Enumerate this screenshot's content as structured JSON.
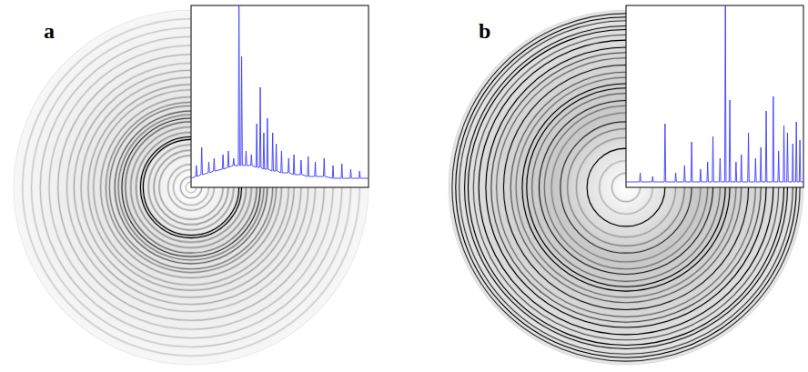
{
  "chart_data": [
    {
      "type": "line",
      "title": "a",
      "x": [
        0,
        2.6,
        3,
        3.4,
        5.6,
        6,
        6.4,
        9.6,
        10,
        10.4,
        12.6,
        13,
        13.4,
        17.6,
        18,
        18.4,
        20.6,
        21,
        21.4,
        23.6,
        24,
        24.4,
        26.6,
        27,
        27.4,
        28.1,
        28.5,
        28.9,
        30.6,
        31,
        31.4,
        33.6,
        34,
        34.4,
        36.6,
        37,
        37.4,
        38.6,
        39,
        39.4,
        40.6,
        41,
        41.4,
        42.6,
        43,
        43.4,
        45.6,
        46,
        46.4,
        47.6,
        48,
        48.4,
        50.6,
        51,
        51.4,
        54.6,
        55,
        55.4,
        57.6,
        58,
        58.4,
        61.6,
        62,
        62.4,
        65.6,
        66,
        66.4,
        69.6,
        70,
        70.4,
        74.6,
        75,
        75.4,
        79.6,
        80,
        80.4,
        84.6,
        85,
        85.4,
        89.6,
        90,
        90.4,
        94.6,
        95,
        95.4,
        100
      ],
      "values": [
        5,
        6,
        12,
        6,
        7,
        22,
        7,
        8,
        14,
        8,
        9,
        16,
        9,
        10,
        18,
        10,
        11,
        20,
        11,
        12,
        16,
        12,
        12,
        100,
        12,
        12,
        72,
        12,
        12,
        20,
        12,
        12,
        18,
        12,
        11,
        35,
        11,
        11,
        55,
        11,
        10,
        30,
        10,
        10,
        38,
        10,
        9,
        30,
        9,
        9,
        24,
        9,
        8,
        20,
        8,
        8,
        16,
        8,
        7,
        18,
        7,
        7,
        15,
        7,
        6,
        17,
        6,
        6,
        14,
        6,
        6,
        16,
        6,
        5,
        12,
        5,
        5,
        13,
        5,
        5,
        10,
        5,
        5,
        9,
        5,
        5
      ],
      "xlim": [
        0,
        100
      ],
      "ylim": [
        0,
        100
      ],
      "color": "#3b3bff",
      "tick_labels": false
    },
    {
      "type": "line",
      "title": "b",
      "x": [
        0,
        7.6,
        8,
        8.4,
        14.6,
        15,
        15.4,
        21.6,
        22,
        22.4,
        27.6,
        28,
        28.4,
        32.6,
        33,
        33.4,
        36.6,
        37,
        37.4,
        41.6,
        42,
        42.4,
        45.6,
        46,
        46.4,
        48.6,
        49,
        49.4,
        52.6,
        53,
        53.4,
        55.6,
        56,
        56.4,
        58.1,
        58.5,
        58.9,
        61.6,
        62,
        62.4,
        64.6,
        65,
        65.4,
        68.6,
        69,
        69.4,
        72.6,
        73,
        73.4,
        75.6,
        76,
        76.4,
        78.6,
        79,
        79.4,
        82.6,
        83,
        83.4,
        85.6,
        86,
        86.4,
        88.6,
        89,
        89.4,
        90.6,
        91,
        91.4,
        93.6,
        94,
        94.4,
        95.6,
        96,
        96.4,
        97.6,
        98,
        98.4,
        100
      ],
      "values": [
        3,
        3,
        8,
        3,
        3,
        6,
        3,
        3,
        35,
        3,
        3,
        8,
        3,
        3,
        12,
        3,
        3,
        25,
        3,
        3,
        10,
        3,
        3,
        14,
        3,
        3,
        28,
        3,
        3,
        16,
        3,
        3,
        100,
        3,
        3,
        48,
        3,
        3,
        14,
        3,
        3,
        18,
        3,
        3,
        30,
        3,
        3,
        16,
        3,
        3,
        22,
        3,
        3,
        42,
        3,
        3,
        50,
        3,
        3,
        20,
        3,
        3,
        34,
        3,
        3,
        30,
        3,
        3,
        24,
        3,
        3,
        36,
        3,
        3,
        26,
        3,
        3
      ],
      "xlim": [
        0,
        100
      ],
      "ylim": [
        0,
        100
      ],
      "color": "#3b3bff",
      "tick_labels": false
    }
  ]
}
